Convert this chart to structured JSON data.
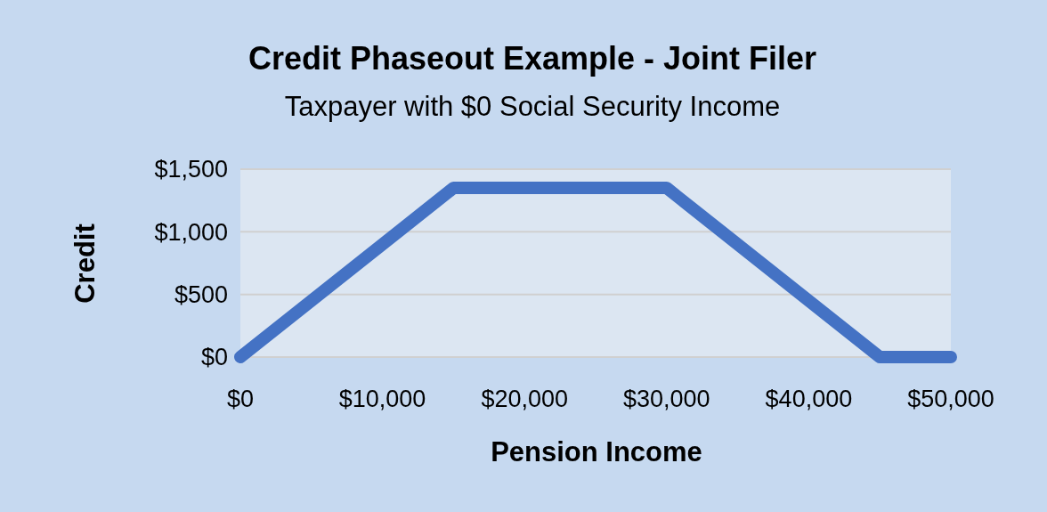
{
  "chart_data": {
    "type": "line",
    "title": "Credit Phaseout Example - Joint Filer",
    "subtitle": "Taxpayer with $0 Social Security Income",
    "xlabel": "Pension Income",
    "ylabel": "Credit",
    "x": [
      0,
      15000,
      30000,
      45000,
      50000
    ],
    "series": [
      {
        "color": "#4472c4",
        "values": [
          0,
          1350,
          1350,
          0,
          0
        ]
      }
    ],
    "xlim": [
      0,
      50000
    ],
    "xticks": [
      {
        "value": 0,
        "label": "$0"
      },
      {
        "value": 10000,
        "label": "$10,000"
      },
      {
        "value": 20000,
        "label": "$20,000"
      },
      {
        "value": 30000,
        "label": "$30,000"
      },
      {
        "value": 40000,
        "label": "$40,000"
      },
      {
        "value": 50000,
        "label": "$50,000"
      }
    ],
    "ylim": [
      0,
      1500
    ],
    "yticks": [
      {
        "value": 0,
        "label": "$0"
      },
      {
        "value": 500,
        "label": "$500"
      },
      {
        "value": 1000,
        "label": "$1,000"
      },
      {
        "value": 1500,
        "label": "$1,500"
      }
    ],
    "grid": "y",
    "marker": "none",
    "line_style": "solid"
  }
}
